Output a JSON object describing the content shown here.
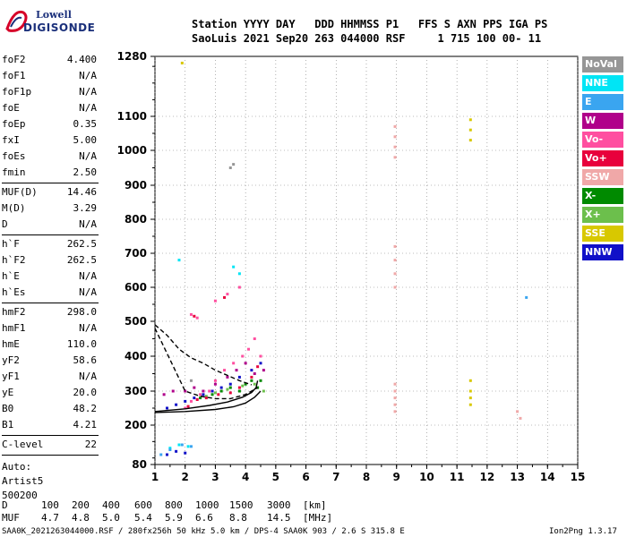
{
  "logo": {
    "line1": "Lowell",
    "line2": "DIGISONDE"
  },
  "header": {
    "line1": "Station YYYY DAY   DDD HHMMSS P1   FFS S AXN PPS IGA PS",
    "line2": "SaoLuis 2021 Sep20 263 044000 RSF     1 715 100 00- 11"
  },
  "params": [
    {
      "name": "foF2",
      "value": "4.400"
    },
    {
      "name": "foF1",
      "value": "N/A"
    },
    {
      "name": "foF1p",
      "value": "N/A"
    },
    {
      "name": "foE",
      "value": "N/A"
    },
    {
      "name": "foEp",
      "value": "0.35"
    },
    {
      "name": "fxI",
      "value": "5.00"
    },
    {
      "name": "foEs",
      "value": "N/A"
    },
    {
      "name": "fmin",
      "value": "2.50"
    },
    {
      "name": "MUF(D)",
      "value": "14.46"
    },
    {
      "name": "M(D)",
      "value": "3.29"
    },
    {
      "name": "D",
      "value": "N/A"
    },
    {
      "name": "h`F",
      "value": "262.5"
    },
    {
      "name": "h`F2",
      "value": "262.5"
    },
    {
      "name": "h`E",
      "value": "N/A"
    },
    {
      "name": "h`Es",
      "value": "N/A"
    },
    {
      "name": "hmF2",
      "value": "298.0"
    },
    {
      "name": "hmF1",
      "value": "N/A"
    },
    {
      "name": "hmE",
      "value": "110.0"
    },
    {
      "name": "yF2",
      "value": "58.6"
    },
    {
      "name": "yF1",
      "value": "N/A"
    },
    {
      "name": "yE",
      "value": "20.0"
    },
    {
      "name": "B0",
      "value": "48.2"
    },
    {
      "name": "B1",
      "value": "4.21"
    },
    {
      "name": "C-level",
      "value": "22"
    }
  ],
  "autoscale": {
    "line1": "Auto:",
    "line2": "Artist5",
    "line3": "500200"
  },
  "legend": [
    {
      "label": "NoVal",
      "color": "#969696"
    },
    {
      "label": "NNE",
      "color": "#00e5f5"
    },
    {
      "label": "E",
      "color": "#3aa5f0"
    },
    {
      "label": "W",
      "color": "#b0008a"
    },
    {
      "label": "Vo-",
      "color": "#ff4fa0"
    },
    {
      "label": "Vo+",
      "color": "#e8003c"
    },
    {
      "label": "SSW",
      "color": "#f0a8a8"
    },
    {
      "label": "X-",
      "color": "#008a00"
    },
    {
      "label": "X+",
      "color": "#6cbf4c"
    },
    {
      "label": "SSE",
      "color": "#d8c800"
    },
    {
      "label": "NNW",
      "color": "#1010c8"
    }
  ],
  "muf_table": {
    "d_label": "D",
    "d_values": [
      "100",
      "200",
      "400",
      "600",
      "800",
      "1000",
      "1500",
      "3000"
    ],
    "d_unit": "[km]",
    "muf_label": "MUF",
    "muf_values": [
      "4.7",
      "4.8",
      "5.0",
      "5.4",
      "5.9",
      "6.6",
      "8.8",
      "14.5"
    ],
    "muf_unit": "[MHz]"
  },
  "footer": {
    "left": "SAA0K_2021263044000.RSF / 280fx256h 50 kHz 5.0 km / DPS-4 SAA0K 903 / 2.6 S 315.8 E",
    "right": "Ion2Png 1.3.17"
  },
  "chart_data": {
    "type": "scatter",
    "title": "",
    "xlabel": "",
    "ylabel": "",
    "x_ticks": [
      1,
      2,
      3,
      4,
      5,
      6,
      7,
      8,
      9,
      10,
      11,
      12,
      13,
      14,
      15
    ],
    "y_ticks": [
      80,
      200,
      300,
      400,
      500,
      600,
      700,
      800,
      900,
      1000,
      1100,
      1280
    ],
    "xlim": [
      1,
      15
    ],
    "ylim": [
      80,
      1280
    ],
    "grid": true,
    "series": [
      {
        "name": "X-",
        "color": "#008a00",
        "points": [
          [
            2.5,
            280
          ],
          [
            2.9,
            290
          ],
          [
            3.2,
            300
          ],
          [
            3.5,
            310
          ],
          [
            3.8,
            300
          ],
          [
            4.0,
            320
          ],
          [
            4.2,
            330
          ],
          [
            4.4,
            310
          ],
          [
            4.5,
            330
          ]
        ]
      },
      {
        "name": "X+",
        "color": "#6cbf4c",
        "points": [
          [
            2.7,
            285
          ],
          [
            3.0,
            295
          ],
          [
            3.4,
            305
          ],
          [
            3.9,
            315
          ],
          [
            4.3,
            320
          ],
          [
            4.6,
            300
          ]
        ]
      },
      {
        "name": "Vo-",
        "color": "#ff4fa0",
        "points": [
          [
            2.0,
            250
          ],
          [
            2.2,
            270
          ],
          [
            2.5,
            290
          ],
          [
            2.8,
            300
          ],
          [
            3.0,
            330
          ],
          [
            3.3,
            360
          ],
          [
            3.6,
            380
          ],
          [
            3.9,
            400
          ],
          [
            4.1,
            420
          ],
          [
            4.3,
            450
          ],
          [
            4.5,
            400
          ],
          [
            3.0,
            560
          ],
          [
            3.4,
            580
          ],
          [
            3.8,
            600
          ],
          [
            2.2,
            520
          ],
          [
            2.4,
            510
          ]
        ]
      },
      {
        "name": "Vo+",
        "color": "#e8003c",
        "points": [
          [
            2.1,
            255
          ],
          [
            2.4,
            275
          ],
          [
            2.7,
            280
          ],
          [
            3.1,
            290
          ],
          [
            3.5,
            295
          ],
          [
            3.8,
            310
          ],
          [
            4.2,
            340
          ],
          [
            4.4,
            370
          ],
          [
            3.3,
            570
          ],
          [
            2.3,
            515
          ]
        ]
      },
      {
        "name": "W",
        "color": "#b0008a",
        "points": [
          [
            1.3,
            290
          ],
          [
            1.6,
            300
          ],
          [
            2.0,
            300
          ],
          [
            2.3,
            310
          ],
          [
            2.6,
            300
          ],
          [
            3.0,
            320
          ],
          [
            3.4,
            340
          ],
          [
            3.7,
            360
          ],
          [
            4.0,
            380
          ],
          [
            4.3,
            350
          ],
          [
            4.6,
            360
          ]
        ]
      },
      {
        "name": "NNW",
        "color": "#1010c8",
        "points": [
          [
            1.4,
            250
          ],
          [
            1.7,
            260
          ],
          [
            2.0,
            270
          ],
          [
            2.3,
            280
          ],
          [
            2.6,
            290
          ],
          [
            2.9,
            300
          ],
          [
            3.2,
            310
          ],
          [
            3.5,
            320
          ],
          [
            3.8,
            340
          ],
          [
            4.2,
            360
          ],
          [
            4.5,
            380
          ],
          [
            1.4,
            110
          ],
          [
            1.7,
            120
          ],
          [
            2.0,
            115
          ]
        ]
      },
      {
        "name": "NNE",
        "color": "#00e5f5",
        "points": [
          [
            1.5,
            130
          ],
          [
            1.8,
            140
          ],
          [
            2.1,
            135
          ],
          [
            3.6,
            660
          ],
          [
            3.8,
            640
          ],
          [
            1.8,
            680
          ]
        ]
      },
      {
        "name": "E",
        "color": "#3aa5f0",
        "points": [
          [
            1.2,
            110
          ],
          [
            1.5,
            125
          ],
          [
            1.9,
            140
          ],
          [
            2.2,
            135
          ],
          [
            13.3,
            570
          ]
        ]
      },
      {
        "name": "SSW",
        "color": "#f0a8a8",
        "points": [
          [
            8.95,
            240
          ],
          [
            8.95,
            260
          ],
          [
            8.95,
            280
          ],
          [
            8.95,
            300
          ],
          [
            8.95,
            320
          ],
          [
            8.95,
            600
          ],
          [
            8.95,
            640
          ],
          [
            8.95,
            680
          ],
          [
            8.95,
            720
          ],
          [
            8.95,
            980
          ],
          [
            8.95,
            1010
          ],
          [
            8.95,
            1040
          ],
          [
            8.95,
            1070
          ],
          [
            13.0,
            240
          ],
          [
            13.1,
            220
          ]
        ]
      },
      {
        "name": "SSE",
        "color": "#d8c800",
        "points": [
          [
            11.45,
            260
          ],
          [
            11.45,
            280
          ],
          [
            11.45,
            300
          ],
          [
            11.45,
            330
          ],
          [
            11.45,
            1030
          ],
          [
            11.45,
            1060
          ],
          [
            11.45,
            1090
          ],
          [
            1.9,
            1260
          ]
        ]
      },
      {
        "name": "NoVal",
        "color": "#969696",
        "points": [
          [
            3.5,
            950
          ],
          [
            3.6,
            960
          ],
          [
            2.2,
            330
          ]
        ]
      }
    ],
    "lines": [
      {
        "name": "profile",
        "color": "#000000",
        "style": "solid",
        "points": [
          [
            1.0,
            240
          ],
          [
            2.0,
            248
          ],
          [
            2.8,
            258
          ],
          [
            3.4,
            268
          ],
          [
            3.9,
            282
          ],
          [
            4.2,
            296
          ],
          [
            4.35,
            310
          ],
          [
            4.4,
            330
          ]
        ]
      },
      {
        "name": "profile-lower",
        "color": "#000000",
        "style": "solid",
        "points": [
          [
            1.0,
            237
          ],
          [
            2.0,
            240
          ],
          [
            3.0,
            246
          ],
          [
            3.6,
            254
          ],
          [
            4.0,
            265
          ],
          [
            4.3,
            282
          ],
          [
            4.5,
            300
          ]
        ]
      },
      {
        "name": "trace-upper",
        "color": "#000000",
        "style": "dashed",
        "points": [
          [
            1.0,
            490
          ],
          [
            1.4,
            460
          ],
          [
            1.8,
            420
          ],
          [
            2.2,
            395
          ],
          [
            2.6,
            380
          ],
          [
            3.0,
            360
          ],
          [
            3.4,
            345
          ],
          [
            3.8,
            330
          ],
          [
            4.2,
            318
          ]
        ]
      },
      {
        "name": "trace-mid",
        "color": "#000000",
        "style": "dashed",
        "points": [
          [
            1.0,
            480
          ],
          [
            2.0,
            300
          ],
          [
            2.5,
            285
          ],
          [
            3.0,
            278
          ],
          [
            3.5,
            278
          ],
          [
            4.0,
            290
          ],
          [
            4.4,
            310
          ]
        ]
      }
    ]
  }
}
